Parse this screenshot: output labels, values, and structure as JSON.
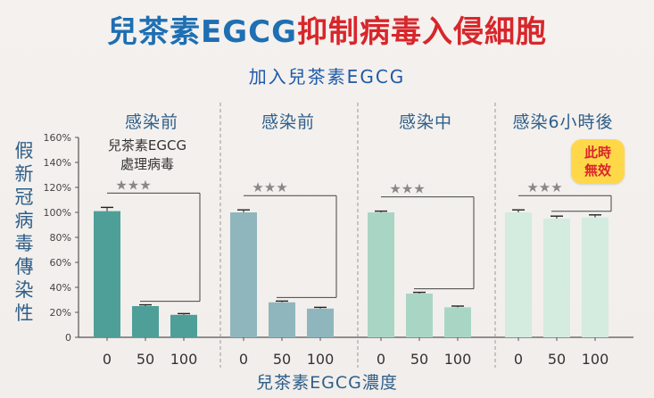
{
  "headline": {
    "part1": "兒茶素EGCG",
    "part2": "抑制病毒入侵細胞"
  },
  "subheading": "加入兒茶素EGCG",
  "colors": {
    "panels": [
      "#4e9f97",
      "#8fb6bd",
      "#a9d6c4",
      "#d4ebe0"
    ],
    "headline_blue": "#1e6fb3",
    "headline_red": "#d8262b"
  },
  "chart_data": {
    "type": "bar",
    "ylabel": "假新冠病毒傳染性",
    "xlabel": "兒茶素EGCG濃度",
    "ylim": [
      0,
      160
    ],
    "yticks": [
      "0",
      "20%",
      "40%",
      "60%",
      "80%",
      "100%",
      "120%",
      "140%",
      "160%"
    ],
    "categories": [
      "0",
      "50",
      "100"
    ],
    "panels": [
      {
        "title": "感染前",
        "note": [
          "兒茶素EGCG",
          "處理病毒"
        ],
        "values": [
          101,
          25,
          18
        ],
        "errors": [
          3,
          1,
          1
        ],
        "significance": "★★★"
      },
      {
        "title": "感染前",
        "values": [
          100,
          28,
          23
        ],
        "errors": [
          2,
          1,
          1
        ],
        "significance": "★★★"
      },
      {
        "title": "感染中",
        "values": [
          100,
          35,
          24
        ],
        "errors": [
          1,
          1,
          1
        ],
        "significance": "★★★"
      },
      {
        "title": "感染6小時後",
        "badge": [
          "此時",
          "無效"
        ],
        "values": [
          100,
          95,
          96
        ],
        "errors": [
          2,
          2,
          2
        ],
        "significance": "★★★"
      }
    ]
  }
}
